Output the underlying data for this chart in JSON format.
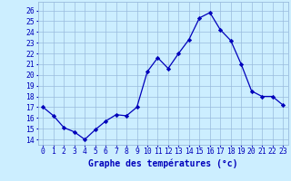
{
  "x": [
    0,
    1,
    2,
    3,
    4,
    5,
    6,
    7,
    8,
    9,
    10,
    11,
    12,
    13,
    14,
    15,
    16,
    17,
    18,
    19,
    20,
    21,
    22,
    23
  ],
  "y": [
    17.0,
    16.2,
    15.1,
    14.7,
    14.0,
    14.9,
    15.7,
    16.3,
    16.2,
    17.0,
    20.3,
    21.6,
    20.6,
    22.0,
    23.3,
    25.3,
    25.8,
    24.2,
    23.2,
    21.0,
    18.5,
    18.0,
    18.0,
    17.2
  ],
  "line_color": "#0000bb",
  "marker": "D",
  "marker_size": 2.2,
  "bg_color": "#cceeff",
  "grid_color": "#99bbdd",
  "xlabel": "Graphe des températures (°c)",
  "xlabel_color": "#0000bb",
  "xlabel_fontsize": 7,
  "tick_color": "#0000bb",
  "tick_fontsize": 5.8,
  "ylim": [
    13.5,
    26.8
  ],
  "xlim": [
    -0.5,
    23.5
  ],
  "yticks": [
    14,
    15,
    16,
    17,
    18,
    19,
    20,
    21,
    22,
    23,
    24,
    25,
    26
  ],
  "xticks": [
    0,
    1,
    2,
    3,
    4,
    5,
    6,
    7,
    8,
    9,
    10,
    11,
    12,
    13,
    14,
    15,
    16,
    17,
    18,
    19,
    20,
    21,
    22,
    23
  ]
}
